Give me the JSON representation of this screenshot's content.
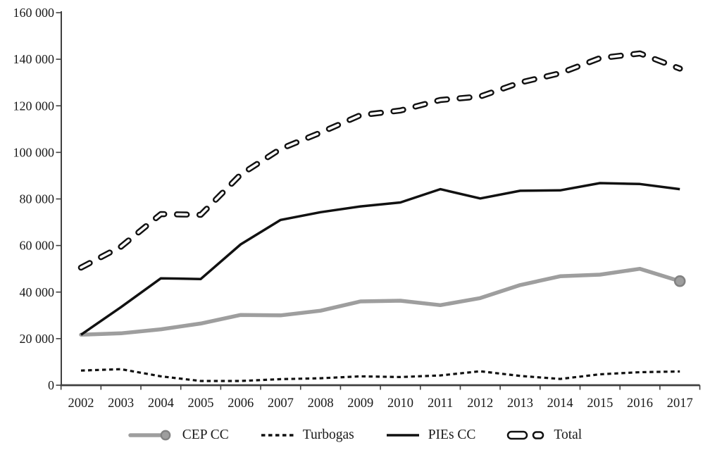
{
  "figure": {
    "background": "#ffffff",
    "text_color": "#1a1a1a",
    "axis_color": "#3f3f3f",
    "gray_series_color": "#9e9e9e",
    "gray_marker_rim": "#828282",
    "black_series_color": "#111111"
  },
  "chart_data": {
    "type": "line",
    "title": "",
    "xlabel": "",
    "ylabel": "",
    "grid": false,
    "legend_position": "bottom",
    "ylim": [
      0,
      160000
    ],
    "y_ticks": [
      0,
      20000,
      40000,
      60000,
      80000,
      100000,
      120000,
      140000,
      160000
    ],
    "y_tick_labels": [
      "0",
      "20 000",
      "40 000",
      "60 000",
      "80 000",
      "100 000",
      "120 000",
      "140 000",
      "160 000"
    ],
    "x_categories": [
      "2002",
      "2003",
      "2004",
      "2005",
      "2006",
      "2007",
      "2008",
      "2009",
      "2010",
      "2011",
      "2012",
      "2013",
      "2014",
      "2015",
      "2016",
      "2017"
    ],
    "series": [
      {
        "name": "CEP CC",
        "style": "solid-thick",
        "color": "#9e9e9e",
        "end_marker": true,
        "values": [
          21700,
          22300,
          24000,
          26500,
          30200,
          30000,
          32000,
          36000,
          36300,
          34400,
          37400,
          43000,
          46800,
          47500,
          50000,
          44700
        ]
      },
      {
        "name": "Turbogas",
        "style": "dotted",
        "color": "#111111",
        "end_marker": false,
        "values": [
          6300,
          6900,
          3800,
          1800,
          1800,
          2600,
          3000,
          3800,
          3500,
          4200,
          6000,
          4000,
          2700,
          4700,
          5600,
          5900
        ]
      },
      {
        "name": "PIEs CC",
        "style": "solid",
        "color": "#111111",
        "end_marker": false,
        "values": [
          21700,
          33500,
          45900,
          45600,
          60500,
          71000,
          74300,
          76800,
          78500,
          84200,
          80200,
          83500,
          83700,
          86800,
          86400,
          84200
        ]
      },
      {
        "name": "Total",
        "style": "outlined-dash",
        "color": "#111111",
        "end_marker": false,
        "values": [
          50500,
          59500,
          73500,
          73200,
          90500,
          101500,
          108500,
          116000,
          118000,
          122500,
          124000,
          130000,
          134000,
          140500,
          142500,
          136000
        ]
      }
    ]
  }
}
